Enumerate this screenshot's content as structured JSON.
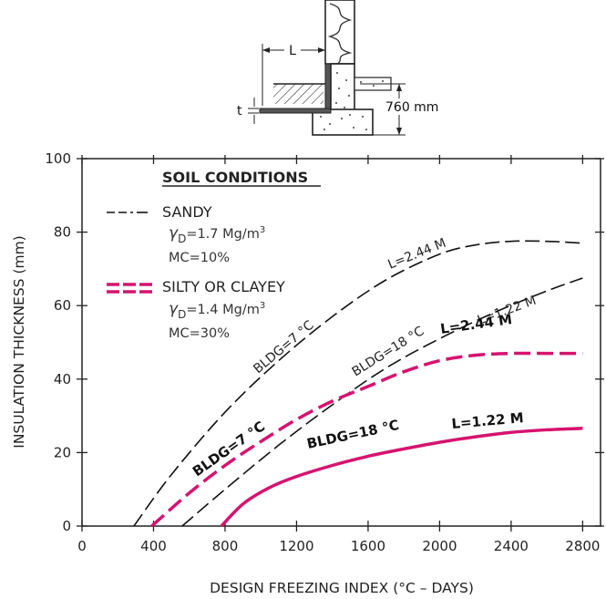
{
  "chart_data": {
    "type": "line",
    "xlabel": "DESIGN FREEZING INDEX (°C – DAYS)",
    "ylabel": "INSULATION THICKNESS (mm)",
    "xlim": [
      0,
      2900
    ],
    "ylim": [
      0,
      100
    ],
    "xticks": [
      0,
      400,
      800,
      1200,
      1600,
      2000,
      2400,
      2800
    ],
    "xtick_labels": [
      "0",
      "400",
      "800",
      "1200",
      "1600",
      "2000",
      "2400",
      "2800"
    ],
    "yticks": [
      0,
      20,
      40,
      60,
      80,
      100
    ],
    "ytick_labels": [
      "0",
      "20",
      "40",
      "60",
      "80",
      "100"
    ],
    "grid": false,
    "legend": {
      "title": "SOIL CONDITIONS",
      "entries": [
        {
          "name": "SANDY",
          "density": "=1.7  Mg/m",
          "mc": "MC=10%",
          "color": "#111111",
          "style": "dashed-thin"
        },
        {
          "name": "SILTY OR CLAYEY",
          "density": "=1.4  Mg/m",
          "mc": "MC=30%",
          "color": "#d6136f",
          "style": "dashed-thick"
        }
      ],
      "gamma_symbol": "γ",
      "gamma_sub": "D",
      "unit_sup": "3"
    },
    "series": [
      {
        "soil": "sandy",
        "label_bldg": "BLDG=7 °C",
        "label_l": "L=2.44 M",
        "color": "#111111",
        "style": "dashed",
        "x": [
          290,
          500,
          800,
          1100,
          1400,
          1700,
          2000,
          2200,
          2400,
          2600,
          2800
        ],
        "y": [
          0,
          14,
          31,
          45,
          57,
          67,
          74,
          76.5,
          77.5,
          77.5,
          77
        ]
      },
      {
        "soil": "sandy",
        "label_bldg": "BLDG=18 °C",
        "label_l": "L=1.22 M",
        "color": "#111111",
        "style": "dashed",
        "x": [
          560,
          800,
          1100,
          1400,
          1700,
          2000,
          2300,
          2600,
          2800
        ],
        "y": [
          0,
          10,
          22,
          33,
          43,
          51,
          58,
          64,
          67.5
        ]
      },
      {
        "soil": "silty",
        "label_bldg": "BLDG=7 °C",
        "label_l": "L=2.44 M",
        "color": "#d6136f",
        "style": "dashed-thick",
        "x": [
          390,
          600,
          800,
          1000,
          1200,
          1400,
          1600,
          1800,
          2000,
          2200,
          2400,
          2600,
          2800
        ],
        "y": [
          0,
          9,
          16.5,
          23,
          29,
          34,
          38,
          42,
          45,
          46.5,
          47,
          47,
          47
        ]
      },
      {
        "soil": "silty",
        "label_bldg": "BLDG=18 °C",
        "label_l": "L=1.22 M",
        "color": "#d6136f",
        "style": "solid-thick",
        "x": [
          780,
          900,
          1050,
          1200,
          1400,
          1600,
          1800,
          2000,
          2200,
          2400,
          2600,
          2800
        ],
        "y": [
          0,
          6,
          10.5,
          13.5,
          16.5,
          19,
          21,
          22.8,
          24.3,
          25.5,
          26.2,
          26.6
        ]
      }
    ]
  },
  "inset": {
    "l_label": "L",
    "t_label": "t",
    "depth_label": "760 mm"
  }
}
